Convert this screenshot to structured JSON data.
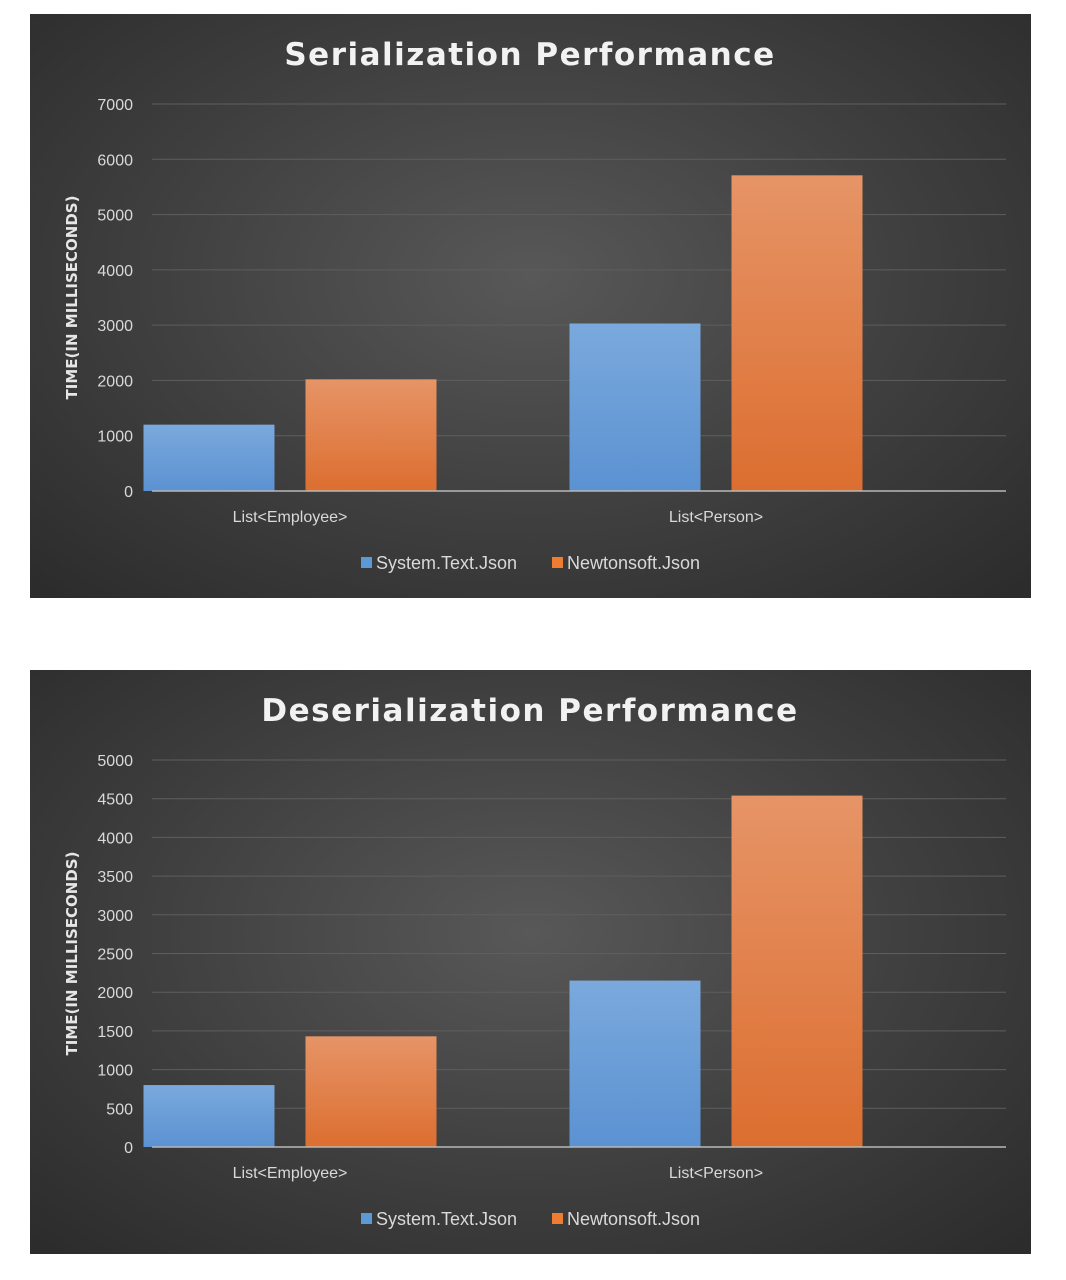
{
  "chart_data": [
    {
      "type": "bar",
      "title": "Serialization  Performance",
      "ylabel": "TIME(IN MILLISECONDS)",
      "xlabel": "",
      "categories": [
        "List<Employee>",
        "List<Person>"
      ],
      "ylim": [
        0,
        7000
      ],
      "yticks": [
        0,
        1000,
        2000,
        3000,
        4000,
        5000,
        6000,
        7000
      ],
      "grid": true,
      "legend_position": "bottom",
      "series": [
        {
          "name": "System.Text.Json",
          "values": [
            1200,
            3030
          ],
          "color": "#5b9bd5"
        },
        {
          "name": "Newtonsoft.Json",
          "values": [
            2020,
            5710
          ],
          "color": "#ed7d31"
        }
      ]
    },
    {
      "type": "bar",
      "title": "Deserialization  Performance",
      "ylabel": "TIME(IN MILLISECONDS)",
      "xlabel": "",
      "categories": [
        "List<Employee>",
        "List<Person>"
      ],
      "ylim": [
        0,
        5000
      ],
      "yticks": [
        0,
        500,
        1000,
        1500,
        2000,
        2500,
        3000,
        3500,
        4000,
        4500,
        5000
      ],
      "grid": true,
      "legend_position": "bottom",
      "series": [
        {
          "name": "System.Text.Json",
          "values": [
            800,
            2150
          ],
          "color": "#5b9bd5"
        },
        {
          "name": "Newtonsoft.Json",
          "values": [
            1430,
            4540
          ],
          "color": "#ed7d31"
        }
      ]
    }
  ]
}
